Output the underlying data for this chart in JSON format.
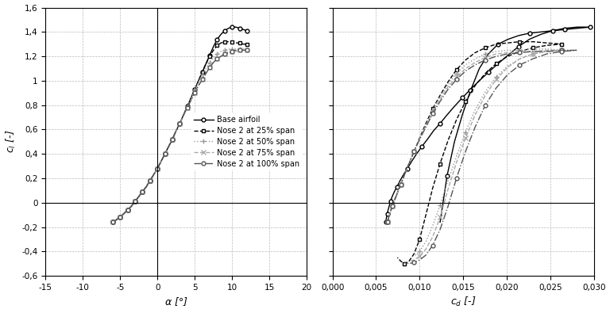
{
  "left": {
    "xlim": [
      -15,
      20
    ],
    "ylim": [
      -0.6,
      1.6
    ],
    "xticks": [
      -15,
      -10,
      -5,
      0,
      5,
      10,
      15,
      20
    ],
    "yticks": [
      -0.6,
      -0.4,
      -0.2,
      0,
      0.2,
      0.4,
      0.6,
      0.8,
      1.0,
      1.2,
      1.4,
      1.6
    ]
  },
  "right": {
    "xlim": [
      0,
      0.03
    ],
    "ylim": [
      -0.6,
      1.6
    ],
    "xticks": [
      0,
      0.005,
      0.01,
      0.015,
      0.02,
      0.025,
      0.03
    ]
  },
  "series": [
    {
      "label": "Base airfoil",
      "color": "#000000",
      "linestyle": "-",
      "marker": "o",
      "markersize": 3.5,
      "markerfacecolor": "white"
    },
    {
      "label": "Nose 2 at 25% span",
      "color": "#000000",
      "linestyle": "--",
      "marker": "s",
      "markersize": 3.5,
      "markerfacecolor": "white"
    },
    {
      "label": "Nose 2 at 50% span",
      "color": "#999999",
      "linestyle": ":",
      "marker": "+",
      "markersize": 5,
      "markerfacecolor": "#999999"
    },
    {
      "label": "Nose 2 at 75% span",
      "color": "#aaaaaa",
      "linestyle": "--",
      "marker": "x",
      "markersize": 4,
      "markerfacecolor": "#aaaaaa"
    },
    {
      "label": "Nose 2 at 100% span",
      "color": "#555555",
      "linestyle": "-.",
      "marker": "o",
      "markersize": 3.5,
      "markerfacecolor": "white"
    }
  ],
  "left_alpha": [
    -6,
    -5.5,
    -5,
    -4.5,
    -4,
    -3.5,
    -3,
    -2.5,
    -2,
    -1.5,
    -1,
    -0.5,
    0,
    0.5,
    1,
    1.5,
    2,
    2.5,
    3,
    3.5,
    4,
    4.5,
    5,
    5.5,
    6,
    6.5,
    7,
    7.5,
    8,
    8.5,
    9,
    9.5,
    10,
    10.5,
    11,
    11.5,
    12
  ],
  "base_cl": [
    -0.16,
    -0.14,
    -0.12,
    -0.09,
    -0.06,
    -0.03,
    0.01,
    0.05,
    0.09,
    0.13,
    0.18,
    0.23,
    0.28,
    0.34,
    0.4,
    0.46,
    0.52,
    0.59,
    0.65,
    0.72,
    0.79,
    0.86,
    0.93,
    1.0,
    1.07,
    1.14,
    1.21,
    1.28,
    1.34,
    1.38,
    1.41,
    1.43,
    1.44,
    1.44,
    1.43,
    1.42,
    1.41
  ],
  "n25_cl": [
    -0.16,
    -0.14,
    -0.12,
    -0.09,
    -0.06,
    -0.03,
    0.01,
    0.05,
    0.09,
    0.13,
    0.18,
    0.23,
    0.28,
    0.34,
    0.4,
    0.46,
    0.52,
    0.59,
    0.65,
    0.72,
    0.79,
    0.86,
    0.93,
    1.0,
    1.07,
    1.14,
    1.2,
    1.25,
    1.29,
    1.31,
    1.32,
    1.32,
    1.32,
    1.31,
    1.31,
    1.3,
    1.3
  ],
  "n50_cl": [
    -0.16,
    -0.14,
    -0.12,
    -0.09,
    -0.06,
    -0.03,
    0.01,
    0.05,
    0.09,
    0.13,
    0.18,
    0.23,
    0.28,
    0.34,
    0.4,
    0.46,
    0.52,
    0.59,
    0.65,
    0.72,
    0.79,
    0.86,
    0.93,
    0.99,
    1.05,
    1.1,
    1.15,
    1.19,
    1.22,
    1.24,
    1.25,
    1.26,
    1.26,
    1.26,
    1.26,
    1.26,
    1.25
  ],
  "n75_cl": [
    -0.16,
    -0.14,
    -0.12,
    -0.09,
    -0.06,
    -0.03,
    0.01,
    0.05,
    0.09,
    0.13,
    0.18,
    0.23,
    0.28,
    0.34,
    0.4,
    0.46,
    0.52,
    0.59,
    0.65,
    0.72,
    0.78,
    0.84,
    0.9,
    0.96,
    1.01,
    1.06,
    1.11,
    1.15,
    1.18,
    1.2,
    1.22,
    1.23,
    1.24,
    1.24,
    1.25,
    1.25,
    1.25
  ],
  "n100_cl": [
    -0.16,
    -0.14,
    -0.12,
    -0.09,
    -0.06,
    -0.03,
    0.01,
    0.05,
    0.09,
    0.13,
    0.18,
    0.23,
    0.28,
    0.34,
    0.4,
    0.46,
    0.52,
    0.59,
    0.65,
    0.72,
    0.78,
    0.84,
    0.9,
    0.96,
    1.01,
    1.06,
    1.11,
    1.15,
    1.18,
    1.2,
    1.22,
    1.23,
    1.24,
    1.25,
    1.25,
    1.25,
    1.25
  ],
  "base_cd_upper": [
    0.0061,
    0.00615,
    0.0062,
    0.00628,
    0.00638,
    0.0065,
    0.00665,
    0.00685,
    0.0071,
    0.0074,
    0.00775,
    0.00815,
    0.0086,
    0.0091,
    0.00965,
    0.01025,
    0.0109,
    0.0116,
    0.01235,
    0.01315,
    0.014,
    0.0149,
    0.01585,
    0.01685,
    0.0179,
    0.019,
    0.02015,
    0.02135,
    0.0226,
    0.0239,
    0.02525,
    0.02665,
    0.0281,
    0.0296
  ],
  "base_cl_upper": [
    -0.16,
    -0.14,
    -0.12,
    -0.09,
    -0.06,
    -0.03,
    0.01,
    0.05,
    0.09,
    0.13,
    0.18,
    0.23,
    0.28,
    0.34,
    0.4,
    0.46,
    0.52,
    0.59,
    0.65,
    0.72,
    0.79,
    0.86,
    0.93,
    1.0,
    1.07,
    1.14,
    1.21,
    1.28,
    1.34,
    1.38,
    1.41,
    1.43,
    1.44,
    1.44
  ],
  "base_cd_lower": [
    0.0296,
    0.0281,
    0.02665,
    0.02525,
    0.0239,
    0.0226,
    0.02135,
    0.02015,
    0.019,
    0.0179,
    0.01685,
    0.01585,
    0.0149,
    0.014,
    0.01315,
    0.01235
  ],
  "base_cl_lower": [
    1.44,
    1.43,
    1.42,
    1.41,
    1.4,
    1.39,
    1.37,
    1.34,
    1.3,
    1.22,
    1.1,
    0.92,
    0.72,
    0.5,
    0.22,
    -0.16
  ],
  "n25_cd_upper": [
    0.0063,
    0.00645,
    0.00663,
    0.00685,
    0.00712,
    0.00745,
    0.00783,
    0.00827,
    0.00878,
    0.00936,
    0.01,
    0.01072,
    0.0115,
    0.01235,
    0.01326,
    0.01423,
    0.01527,
    0.01637,
    0.01754,
    0.01878,
    0.0201,
    0.0215,
    0.023,
    0.0246,
    0.0263
  ],
  "n25_cl_upper": [
    -0.16,
    -0.12,
    -0.08,
    -0.03,
    0.02,
    0.08,
    0.15,
    0.23,
    0.32,
    0.42,
    0.53,
    0.65,
    0.77,
    0.88,
    0.99,
    1.09,
    1.17,
    1.23,
    1.27,
    1.3,
    1.31,
    1.32,
    1.32,
    1.31,
    1.3
  ],
  "n25_cd_lower": [
    0.0263,
    0.0246,
    0.023,
    0.0215,
    0.0201,
    0.01878,
    0.01754,
    0.01637,
    0.01527,
    0.01423,
    0.01326,
    0.01235,
    0.0115,
    0.01072,
    0.01,
    0.00936,
    0.00878,
    0.00827,
    0.00783,
    0.00745
  ],
  "n25_cl_lower": [
    1.3,
    1.29,
    1.27,
    1.24,
    1.2,
    1.14,
    1.06,
    0.96,
    0.83,
    0.68,
    0.51,
    0.32,
    0.12,
    -0.1,
    -0.3,
    -0.42,
    -0.48,
    -0.5,
    -0.48,
    -0.45
  ],
  "n50_cd_upper": [
    0.0063,
    0.00645,
    0.00663,
    0.00685,
    0.00712,
    0.00745,
    0.00783,
    0.00827,
    0.00878,
    0.00936,
    0.01,
    0.01072,
    0.0115,
    0.01235,
    0.01326,
    0.01423,
    0.01527,
    0.01637,
    0.01754,
    0.01878,
    0.0201,
    0.0215,
    0.023,
    0.0246,
    0.0263
  ],
  "n50_cl_upper": [
    -0.16,
    -0.12,
    -0.08,
    -0.03,
    0.02,
    0.08,
    0.15,
    0.23,
    0.32,
    0.42,
    0.53,
    0.64,
    0.76,
    0.87,
    0.97,
    1.06,
    1.13,
    1.18,
    1.22,
    1.24,
    1.25,
    1.25,
    1.26,
    1.26,
    1.25
  ],
  "n50_cd_lower": [
    0.0263,
    0.0246,
    0.023,
    0.0215,
    0.0201,
    0.01878,
    0.01754,
    0.01637,
    0.01527,
    0.01423,
    0.01326,
    0.01235,
    0.0115,
    0.01072,
    0.01,
    0.00936
  ],
  "n50_cl_lower": [
    1.25,
    1.24,
    1.22,
    1.18,
    1.12,
    1.03,
    0.91,
    0.76,
    0.58,
    0.38,
    0.18,
    -0.02,
    -0.19,
    -0.32,
    -0.4,
    -0.44
  ],
  "n75_cd_upper": [
    0.0063,
    0.00645,
    0.00663,
    0.00685,
    0.00712,
    0.00745,
    0.00783,
    0.00827,
    0.00878,
    0.00936,
    0.01,
    0.01072,
    0.0115,
    0.01235,
    0.01326,
    0.01423,
    0.01527,
    0.01637,
    0.01754,
    0.01878,
    0.0201,
    0.0215,
    0.023,
    0.0246,
    0.0263
  ],
  "n75_cl_upper": [
    -0.16,
    -0.12,
    -0.08,
    -0.03,
    0.02,
    0.08,
    0.15,
    0.23,
    0.32,
    0.42,
    0.52,
    0.63,
    0.74,
    0.85,
    0.95,
    1.03,
    1.1,
    1.15,
    1.19,
    1.22,
    1.23,
    1.24,
    1.24,
    1.25,
    1.25
  ],
  "n75_cd_lower": [
    0.0263,
    0.0246,
    0.023,
    0.0215,
    0.0201,
    0.01878,
    0.01754,
    0.01637,
    0.01527,
    0.01423,
    0.01326,
    0.01235,
    0.0115,
    0.01072,
    0.01,
    0.00936,
    0.00878
  ],
  "n75_cl_lower": [
    1.25,
    1.24,
    1.22,
    1.18,
    1.11,
    1.01,
    0.88,
    0.72,
    0.53,
    0.33,
    0.11,
    -0.12,
    -0.28,
    -0.38,
    -0.44,
    -0.47,
    -0.48
  ],
  "n100_cd_upper": [
    0.0063,
    0.00645,
    0.00663,
    0.00685,
    0.00712,
    0.00745,
    0.00783,
    0.00827,
    0.00878,
    0.00936,
    0.01,
    0.01072,
    0.0115,
    0.01235,
    0.01326,
    0.01423,
    0.01527,
    0.01637,
    0.01754,
    0.01878,
    0.0201,
    0.0215,
    0.023,
    0.0246,
    0.0263,
    0.028
  ],
  "n100_cl_upper": [
    -0.16,
    -0.12,
    -0.08,
    -0.03,
    0.02,
    0.08,
    0.15,
    0.23,
    0.32,
    0.42,
    0.52,
    0.62,
    0.73,
    0.83,
    0.93,
    1.01,
    1.08,
    1.13,
    1.17,
    1.2,
    1.22,
    1.23,
    1.24,
    1.24,
    1.25,
    1.25
  ],
  "n100_cd_lower": [
    0.028,
    0.0263,
    0.0246,
    0.023,
    0.0215,
    0.0201,
    0.01878,
    0.01754,
    0.01637,
    0.01527,
    0.01423,
    0.01326,
    0.01235,
    0.0115,
    0.01072,
    0.01,
    0.00936,
    0.00878,
    0.00827
  ],
  "n100_cl_lower": [
    1.25,
    1.24,
    1.22,
    1.18,
    1.13,
    1.05,
    0.94,
    0.8,
    0.62,
    0.42,
    0.2,
    -0.03,
    -0.22,
    -0.35,
    -0.43,
    -0.47,
    -0.49,
    -0.5,
    -0.49
  ]
}
